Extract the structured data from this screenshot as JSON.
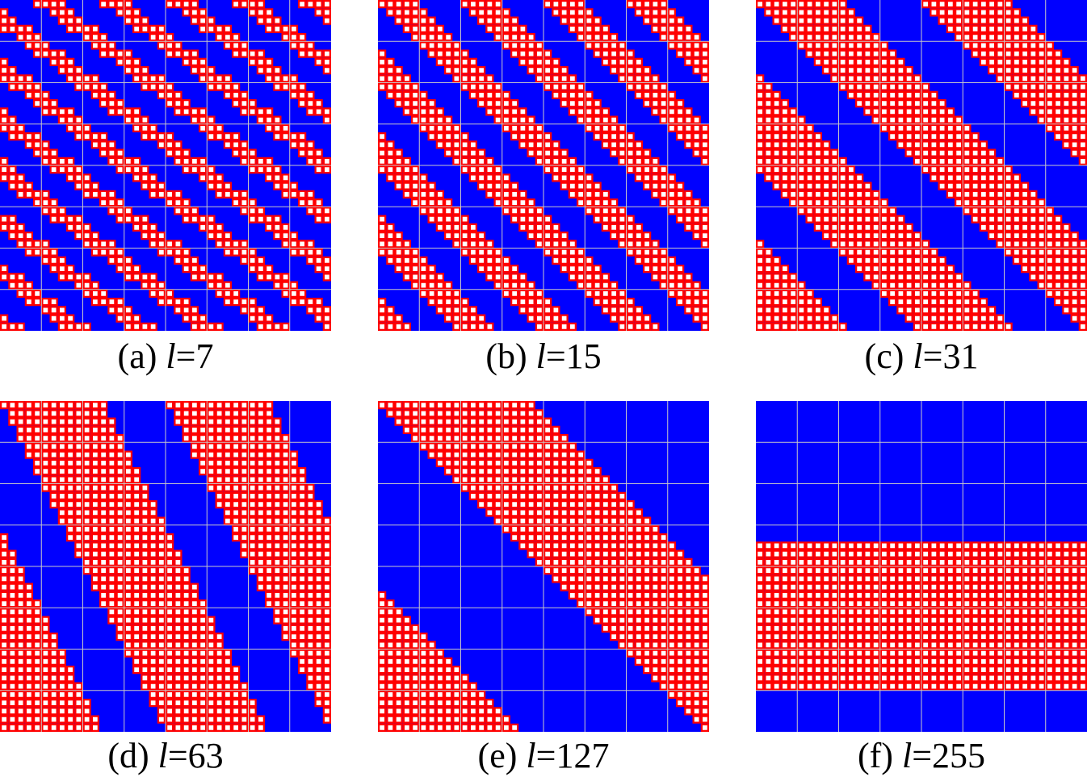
{
  "figure": {
    "colors": {
      "background": "#0000ff",
      "cell_fill": "#ff0000",
      "cell_inner": "#ffffff",
      "grid_lines": "#c8c8c8"
    },
    "panels": [
      {
        "label": "(a)",
        "var": "l",
        "eq": "=7",
        "pattern": "diag-up",
        "bands": 5,
        "band_width": 0.42,
        "slope": 1.3
      },
      {
        "label": "(b)",
        "var": "l",
        "eq": "=15",
        "pattern": "diag-up",
        "bands": 4,
        "band_width": 0.45,
        "slope": 1.0
      },
      {
        "label": "(c)",
        "var": "l",
        "eq": "=31",
        "pattern": "diag-down",
        "bands": 2,
        "band_width": 0.55,
        "slope": 1.0
      },
      {
        "label": "(d)",
        "var": "l",
        "eq": "=63",
        "pattern": "diag-down",
        "bands": 2,
        "band_width": 0.62,
        "slope": 0.5
      },
      {
        "label": "(e)",
        "var": "l",
        "eq": "=127",
        "pattern": "diag-up",
        "bands": 1,
        "band_width": 0.45,
        "slope": 1.0
      },
      {
        "label": "(f)",
        "var": "l",
        "eq": "=255",
        "pattern": "horizontal",
        "rows_from": 17,
        "rows_to": 35
      }
    ]
  }
}
